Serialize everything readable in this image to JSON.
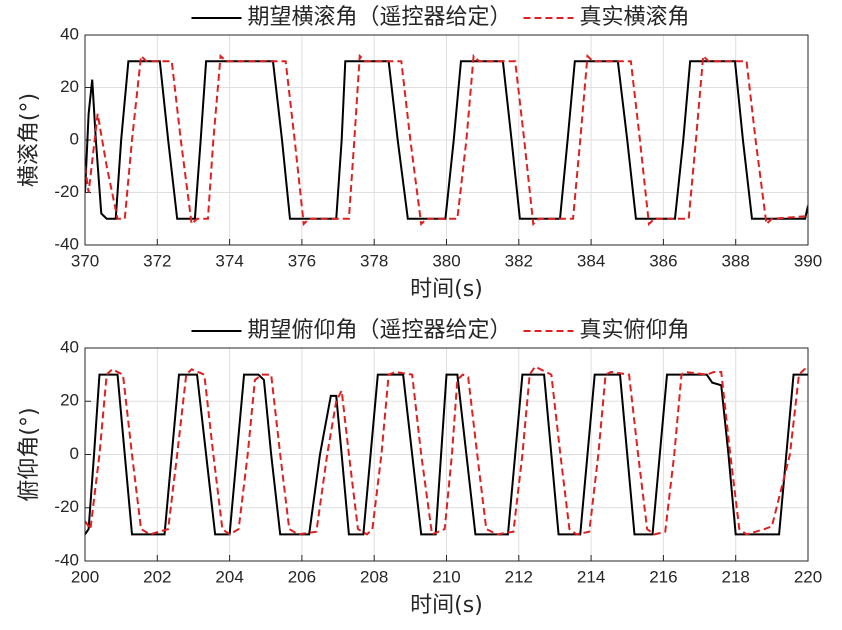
{
  "chart_data": [
    {
      "type": "line",
      "xlabel": "时间(s)",
      "ylabel": "横滚角(°)",
      "xlim": [
        370,
        390
      ],
      "xticks": [
        370,
        372,
        374,
        376,
        378,
        380,
        382,
        384,
        386,
        388,
        390
      ],
      "ylim": [
        -40,
        40
      ],
      "yticks": [
        -40,
        -20,
        0,
        20,
        40
      ],
      "grid": true,
      "legend": "top",
      "series": [
        {
          "name": "期望横滚角（遥控器给定）",
          "color": "#000000",
          "linestyle": "solid",
          "x": [
            370,
            370.1,
            370.2,
            370.3,
            370.45,
            370.6,
            370.85,
            371.0,
            371.2,
            372.07,
            372.3,
            372.55,
            373.04,
            373.2,
            373.35,
            375.2,
            375.45,
            375.67,
            376.95,
            377.1,
            377.2,
            378.4,
            378.65,
            378.93,
            379.97,
            380.2,
            380.4,
            381.56,
            381.8,
            382.03,
            383.14,
            383.35,
            383.55,
            384.74,
            385.0,
            385.24,
            386.32,
            386.55,
            386.74,
            387.98,
            388.2,
            388.45,
            389.92,
            390
          ],
          "values": [
            -20,
            10,
            23,
            0,
            -28,
            -30,
            -30,
            0,
            30,
            30,
            0,
            -30,
            -30,
            0,
            30,
            30,
            0,
            -30,
            -30,
            0,
            30,
            30,
            0,
            -30,
            -30,
            0,
            30,
            30,
            0,
            -30,
            -30,
            0,
            30,
            30,
            0,
            -30,
            -30,
            0,
            30,
            30,
            0,
            -30,
            -30,
            -25
          ]
        },
        {
          "name": "真实横滚角",
          "color": "#e02020",
          "linestyle": "dashed",
          "x": [
            370,
            370.1,
            370.35,
            370.6,
            370.9,
            371.1,
            371.3,
            371.55,
            371.7,
            372.4,
            372.65,
            372.95,
            373.1,
            373.4,
            373.55,
            373.75,
            373.9,
            375.55,
            375.8,
            376.05,
            376.2,
            377.3,
            377.45,
            377.6,
            377.75,
            378.75,
            379.0,
            379.3,
            379.45,
            380.3,
            380.55,
            380.75,
            380.9,
            381.9,
            382.15,
            382.4,
            382.55,
            383.5,
            383.7,
            383.9,
            384.05,
            385.1,
            385.35,
            385.6,
            385.75,
            386.7,
            386.9,
            387.1,
            387.25,
            388.3,
            388.55,
            388.85,
            389.0,
            390
          ],
          "values": [
            -10,
            -20,
            10,
            -10,
            -30,
            -30,
            0,
            32,
            30,
            30,
            0,
            -32,
            -30,
            -30,
            0,
            32,
            30,
            30,
            0,
            -32,
            -30,
            -30,
            0,
            32,
            30,
            30,
            0,
            -32,
            -30,
            -30,
            0,
            32,
            30,
            30,
            0,
            -32,
            -30,
            -30,
            0,
            32,
            30,
            30,
            0,
            -32,
            -30,
            -30,
            0,
            32,
            30,
            30,
            0,
            -32,
            -30,
            -29
          ]
        }
      ]
    },
    {
      "type": "line",
      "xlabel": "时间(s)",
      "ylabel": "俯仰角(°)",
      "xlim": [
        200,
        220
      ],
      "xticks": [
        200,
        202,
        204,
        206,
        208,
        210,
        212,
        214,
        216,
        218,
        220
      ],
      "ylim": [
        -40,
        40
      ],
      "yticks": [
        -40,
        -20,
        0,
        20,
        40
      ],
      "grid": true,
      "legend": "top",
      "series": [
        {
          "name": "期望俯仰角（遥控器给定）",
          "color": "#000000",
          "linestyle": "solid",
          "x": [
            200,
            200.1,
            200.25,
            200.4,
            200.9,
            201.1,
            201.3,
            202.2,
            202.4,
            202.6,
            203.1,
            203.35,
            203.6,
            204.0,
            204.2,
            204.4,
            204.8,
            204.95,
            205.15,
            205.4,
            206.2,
            206.5,
            206.8,
            206.95,
            207.1,
            207.3,
            207.7,
            207.9,
            208.1,
            208.8,
            209.05,
            209.3,
            209.7,
            209.85,
            210.0,
            210.3,
            210.55,
            210.8,
            211.7,
            211.9,
            212.1,
            212.7,
            212.9,
            213.1,
            213.7,
            213.9,
            214.1,
            214.8,
            215.0,
            215.2,
            215.7,
            215.9,
            216.1,
            217.2,
            217.35,
            217.6,
            217.8,
            218.0,
            219.2,
            219.4,
            219.6,
            220
          ],
          "values": [
            -30,
            -28,
            0,
            30,
            30,
            0,
            -30,
            -30,
            0,
            30,
            30,
            0,
            -30,
            -30,
            0,
            30,
            30,
            28,
            0,
            -30,
            -30,
            0,
            22,
            22,
            0,
            -30,
            -30,
            0,
            30,
            30,
            0,
            -30,
            -30,
            0,
            30,
            30,
            0,
            -30,
            -30,
            0,
            30,
            30,
            0,
            -30,
            -30,
            0,
            30,
            30,
            0,
            -30,
            -30,
            0,
            30,
            30,
            27,
            26,
            0,
            -30,
            -30,
            0,
            30,
            30
          ]
        },
        {
          "name": "真实俯仰角",
          "color": "#e02020",
          "linestyle": "dashed",
          "x": [
            200,
            200.15,
            200.4,
            200.6,
            200.75,
            201.05,
            201.3,
            201.55,
            201.8,
            202.3,
            202.55,
            202.8,
            202.95,
            203.3,
            203.55,
            203.8,
            204.0,
            204.25,
            204.5,
            204.7,
            204.9,
            205.15,
            205.4,
            205.65,
            205.9,
            206.4,
            206.7,
            206.95,
            207.1,
            207.3,
            207.55,
            207.8,
            207.95,
            208.2,
            208.4,
            208.6,
            209.05,
            209.3,
            209.6,
            209.95,
            210.15,
            210.3,
            210.45,
            210.6,
            210.85,
            211.1,
            211.4,
            211.85,
            212.1,
            212.3,
            212.45,
            212.9,
            213.15,
            213.4,
            213.6,
            213.95,
            214.2,
            214.4,
            214.55,
            215.05,
            215.3,
            215.55,
            215.75,
            216.05,
            216.3,
            216.5,
            216.6,
            217.2,
            217.4,
            217.6,
            217.85,
            218.1,
            218.3,
            218.8,
            219.0,
            219.5,
            219.75,
            219.9,
            220
          ],
          "values": [
            -25,
            -28,
            0,
            30,
            32,
            30,
            0,
            -28,
            -30,
            -28,
            0,
            30,
            32,
            30,
            0,
            -28,
            -30,
            -28,
            0,
            28,
            30,
            30,
            0,
            -28,
            -30,
            -29,
            0,
            20,
            24,
            0,
            -28,
            -30,
            -28,
            0,
            30,
            31,
            30,
            0,
            -30,
            -28,
            0,
            28,
            30,
            29,
            0,
            -28,
            -30,
            -29,
            0,
            30,
            33,
            30,
            0,
            -28,
            -30,
            -29,
            0,
            30,
            31,
            30,
            0,
            -28,
            -30,
            -29,
            0,
            30,
            31,
            30,
            31,
            31,
            0,
            -28,
            -30,
            -28,
            -27,
            0,
            30,
            32,
            32
          ]
        }
      ]
    }
  ]
}
